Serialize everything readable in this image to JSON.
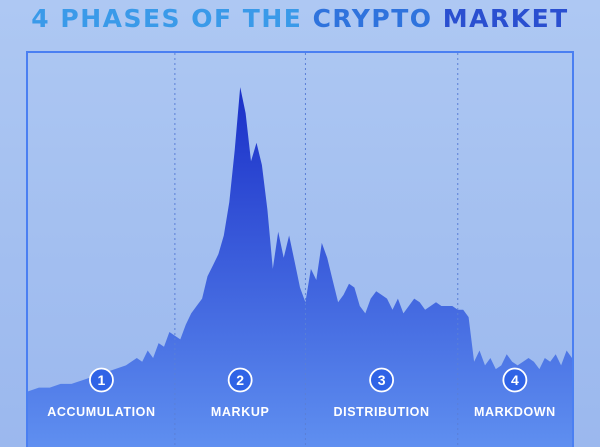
{
  "title": {
    "segments": [
      "4 PHASES OF THE ",
      "CRYPTO ",
      "MARKET"
    ]
  },
  "colors": {
    "background": "#a9c4f2",
    "frame": "#4a7ff2",
    "divider": "#5a7fd6",
    "area_top": "#1a2fc8",
    "area_bottom": "#5f8ff0",
    "badge_fill": "#2f63e6",
    "badge_border": "#ffffff",
    "label": "#ffffff"
  },
  "chart_data": {
    "type": "area",
    "title": "4 PHASES OF THE CRYPTO MARKET",
    "xlabel": "",
    "ylabel": "",
    "axes_visible": false,
    "grid": false,
    "legend": "none",
    "xlim": [
      0,
      100
    ],
    "ylim": [
      0,
      100
    ],
    "x": [
      0,
      2,
      4,
      6,
      8,
      10,
      12,
      14,
      16,
      18,
      20,
      21,
      22,
      23,
      24,
      25,
      26,
      27,
      28,
      29,
      30,
      31,
      32,
      33,
      34,
      35,
      36,
      37,
      38,
      39,
      40,
      41,
      42,
      43,
      44,
      45,
      46,
      47,
      48,
      49,
      50,
      51,
      52,
      53,
      54,
      55,
      56,
      57,
      58,
      59,
      60,
      61,
      62,
      63,
      64,
      65,
      66,
      67,
      68,
      69,
      70,
      71,
      72,
      73,
      74,
      75,
      76,
      77,
      78,
      79,
      80,
      81,
      82,
      83,
      84,
      85,
      86,
      87,
      88,
      89,
      90,
      91,
      92,
      93,
      94,
      95,
      96,
      97,
      98,
      99,
      100
    ],
    "y": [
      15,
      16,
      16,
      17,
      17,
      18,
      19,
      20,
      21,
      22,
      24,
      23,
      26,
      24,
      28,
      27,
      31,
      30,
      29,
      33,
      36,
      38,
      40,
      46,
      49,
      52,
      57,
      66,
      80,
      97,
      90,
      77,
      82,
      76,
      64,
      48,
      58,
      51,
      57,
      50,
      43,
      39,
      48,
      45,
      55,
      51,
      45,
      39,
      41,
      44,
      43,
      38,
      36,
      40,
      42,
      41,
      40,
      37,
      40,
      36,
      38,
      40,
      39,
      37,
      38,
      39,
      38,
      38,
      38,
      37,
      37,
      35,
      23,
      26,
      22,
      24,
      21,
      22,
      25,
      23,
      22,
      23,
      24,
      23,
      21,
      24,
      23,
      25,
      22,
      26,
      24
    ],
    "phase_boundaries": [
      27,
      51,
      79
    ],
    "phases": [
      {
        "number": "1",
        "label": "ACCUMULATION"
      },
      {
        "number": "2",
        "label": "MARKUP"
      },
      {
        "number": "3",
        "label": "DISTRIBUTION"
      },
      {
        "number": "4",
        "label": "MARKDOWN"
      }
    ]
  }
}
